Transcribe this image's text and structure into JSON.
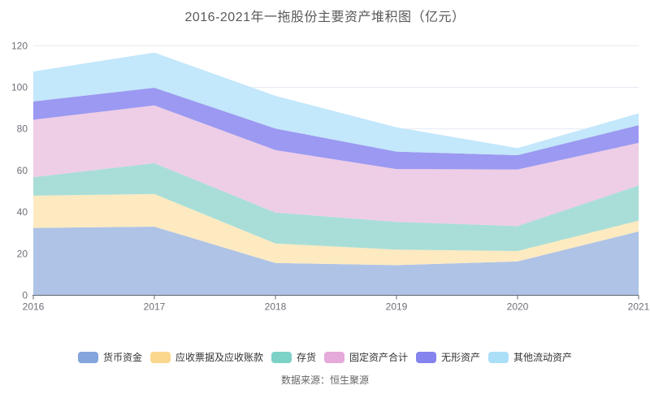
{
  "title": "2016-2021年一拖股份主要资产堆积图（亿元）",
  "footer": {
    "source": "数据来源：恒生聚源"
  },
  "colors": {
    "axis_line": "#5f6672",
    "grid_line": "#e5e9f2",
    "tick_label": "#6e7079"
  },
  "chart_data": {
    "type": "area",
    "stacked": true,
    "title": "2016-2021年一拖股份主要资产堆积图（亿元）",
    "unit": "亿元",
    "categories": [
      "2016",
      "2017",
      "2018",
      "2019",
      "2020",
      "2021"
    ],
    "series": [
      {
        "name": "货币资金",
        "color": "#84a4dc",
        "fill": "#aec3e6",
        "values": [
          32.4,
          33.0,
          15.5,
          14.5,
          16.3,
          30.7
        ]
      },
      {
        "name": "应收票据及应收账款",
        "color": "#fbd78e",
        "fill": "#fdeac1",
        "values": [
          15.5,
          15.7,
          9.4,
          7.5,
          5.0,
          5.2
        ]
      },
      {
        "name": "存货",
        "color": "#7dd2c8",
        "fill": "#a9ded8",
        "values": [
          8.9,
          14.8,
          14.9,
          13.3,
          12.0,
          16.9
        ]
      },
      {
        "name": "固定资产合计",
        "color": "#e5aad9",
        "fill": "#eecde6",
        "values": [
          27.6,
          27.8,
          30.0,
          25.4,
          27.2,
          20.5
        ]
      },
      {
        "name": "无形资产",
        "color": "#8583ee",
        "fill": "#9b99f1",
        "values": [
          8.8,
          8.5,
          10.4,
          8.4,
          6.9,
          8.5
        ]
      },
      {
        "name": "其他流动资产",
        "color": "#abdff8",
        "fill": "#c3e7fb",
        "values": [
          14.4,
          16.9,
          15.7,
          11.7,
          3.4,
          5.7
        ]
      }
    ],
    "xlabel": "",
    "ylabel": "",
    "yticks": [
      0,
      20,
      40,
      60,
      80,
      100,
      120
    ],
    "ylim": [
      0,
      120
    ],
    "grid": true,
    "legend_position": "bottom"
  }
}
